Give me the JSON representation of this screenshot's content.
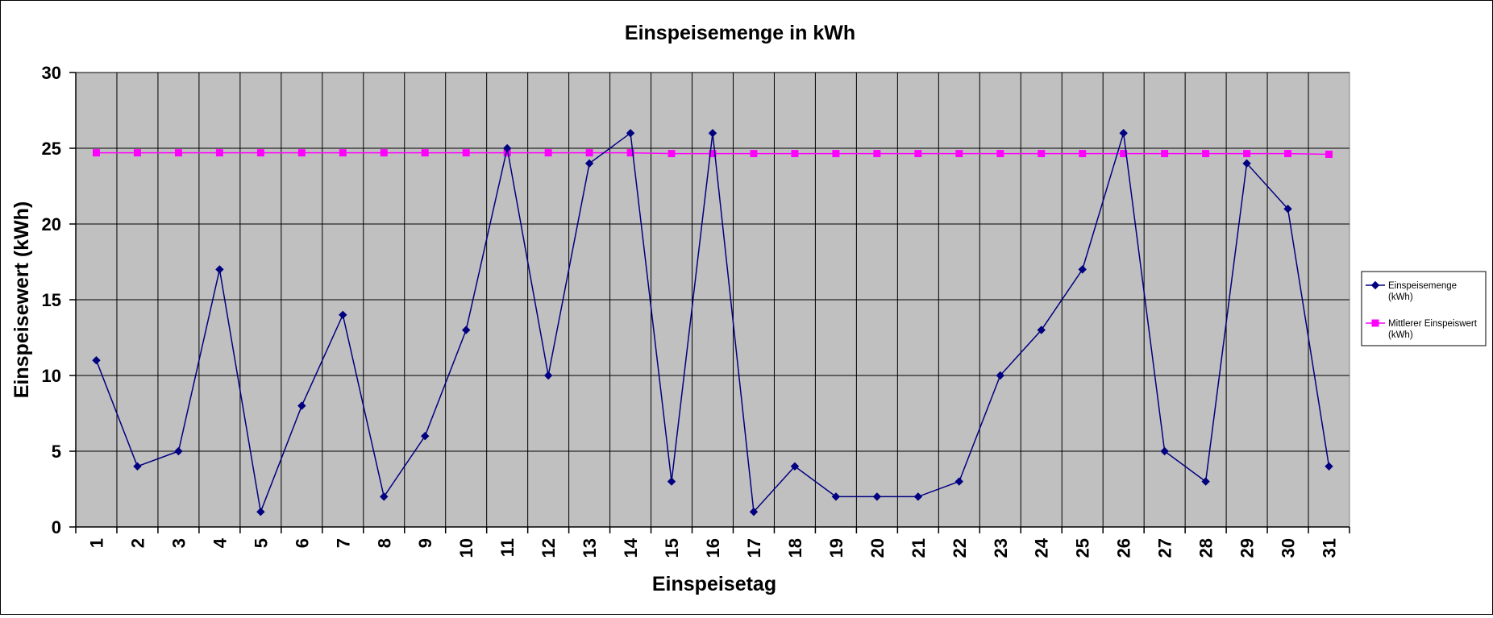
{
  "chart_data": {
    "type": "line",
    "title": "Einspeisemenge in kWh",
    "xlabel": "Einspeisetag",
    "ylabel": "Einspeisewert  (kWh)",
    "x": [
      1,
      2,
      3,
      4,
      5,
      6,
      7,
      8,
      9,
      10,
      11,
      12,
      13,
      14,
      15,
      16,
      17,
      18,
      19,
      20,
      21,
      22,
      23,
      24,
      25,
      26,
      27,
      28,
      29,
      30,
      31
    ],
    "ylim": [
      0,
      30
    ],
    "yticks": [
      0,
      5,
      10,
      15,
      20,
      25,
      30
    ],
    "grid": true,
    "legend_position": "right",
    "series": [
      {
        "name": "Einspeisemenge (kWh)",
        "legend_lines": [
          "Einspeisemenge",
          "(kWh)"
        ],
        "color": "#000080",
        "marker": "diamond",
        "values": [
          11,
          4,
          5,
          17,
          1,
          8,
          14,
          2,
          6,
          13,
          25,
          10,
          24,
          26,
          3,
          26,
          1,
          4,
          2,
          2,
          2,
          3,
          10,
          13,
          17,
          26,
          5,
          3,
          24,
          21,
          4
        ]
      },
      {
        "name": "Mittlerer Einspeiswert (kWh)",
        "legend_lines": [
          "Mittlerer Einspeiswert",
          "(kWh)"
        ],
        "color": "#FF00FF",
        "marker": "square",
        "values": [
          24.7,
          24.7,
          24.7,
          24.7,
          24.7,
          24.7,
          24.7,
          24.7,
          24.7,
          24.7,
          24.7,
          24.7,
          24.7,
          24.7,
          24.65,
          24.65,
          24.65,
          24.65,
          24.65,
          24.65,
          24.65,
          24.65,
          24.65,
          24.65,
          24.65,
          24.65,
          24.65,
          24.65,
          24.65,
          24.65,
          24.6
        ]
      }
    ],
    "colors": {
      "plot_background": "#C0C0C0",
      "gridline": "#000000"
    }
  }
}
